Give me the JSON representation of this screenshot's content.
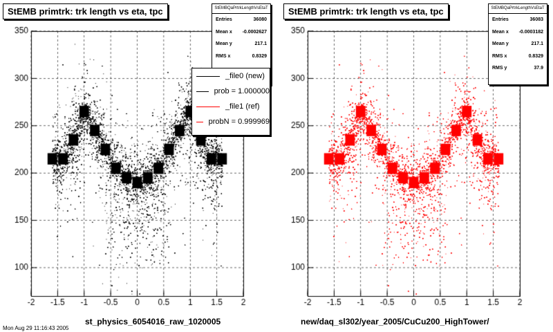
{
  "footer": "Mon Aug 29 11:16:43 2005",
  "panels": [
    {
      "title": "StEMB primtrk: trk length vs eta, tpc",
      "xtitle": "st_physics_6054016_raw_1020005",
      "marker_color": "#000000",
      "stats": {
        "name": "StEMBQaPrtrkLengthVsEtaT",
        "rows": [
          {
            "label": "Entries",
            "value": "36080"
          },
          {
            "label": "Mean x",
            "value": "-0.0002627"
          },
          {
            "label": "Mean y",
            "value": "217.1"
          },
          {
            "label": "RMS x",
            "value": "0.8329"
          }
        ]
      },
      "legend": [
        {
          "label": "_file0 (new)",
          "color": "#000000"
        },
        {
          "label": "prob = 1.000000",
          "color": "#000000"
        },
        {
          "label": "_file1 (ref)",
          "color": "#ff0000"
        },
        {
          "label": "probN = 0.999969",
          "color": "#ff0000"
        }
      ]
    },
    {
      "title": "StEMB primtrk: trk length vs eta, tpc",
      "xtitle": "new/daq_sl302/year_2005/CuCu200_HighTower/",
      "marker_color": "#ff0000",
      "stats": {
        "name": "StEMBQaPrtrkLengthVsEtaT",
        "rows": [
          {
            "label": "Entries",
            "value": "36083"
          },
          {
            "label": "Mean x",
            "value": "-0.0003182"
          },
          {
            "label": "Mean y",
            "value": "217.1"
          },
          {
            "label": "RMS x",
            "value": "0.8329"
          },
          {
            "label": "RMS y",
            "value": "37.9"
          }
        ]
      }
    }
  ],
  "chart_data": [
    {
      "type": "scatter",
      "title": "StEMB primtrk: trk length vs eta, tpc",
      "xlabel": "st_physics_6054016_raw_1020005",
      "ylabel": "",
      "xlim": [
        -2,
        2
      ],
      "ylim": [
        70,
        350
      ],
      "xticks": [
        "-2",
        "-1.5",
        "-1",
        "-0.5",
        "0",
        "0.5",
        "1",
        "1.5",
        "2"
      ],
      "yticks": [
        "100",
        "150",
        "200",
        "250",
        "300",
        "350"
      ],
      "grid": true,
      "density_ridge": {
        "x": [
          -1.6,
          -1.4,
          -1.2,
          -1.0,
          -0.8,
          -0.6,
          -0.4,
          -0.2,
          0.0,
          0.2,
          0.4,
          0.6,
          0.8,
          1.0,
          1.2,
          1.4,
          1.6
        ],
        "y": [
          215,
          215,
          235,
          265,
          245,
          225,
          205,
          195,
          190,
          195,
          205,
          225,
          245,
          265,
          235,
          215,
          215
        ]
      },
      "series": [
        {
          "name": "_file0 (new)",
          "color": "#000000"
        }
      ]
    },
    {
      "type": "scatter",
      "title": "StEMB primtrk: trk length vs eta, tpc",
      "xlabel": "new/daq_sl302/year_2005/CuCu200_HighTower/",
      "ylabel": "",
      "xlim": [
        -2,
        2
      ],
      "ylim": [
        70,
        350
      ],
      "xticks": [
        "-2",
        "-1.5",
        "-1",
        "-0.5",
        "0",
        "0.5",
        "1",
        "1.5",
        "2"
      ],
      "yticks": [
        "100",
        "150",
        "200",
        "250",
        "300",
        "350"
      ],
      "grid": true,
      "density_ridge": {
        "x": [
          -1.6,
          -1.4,
          -1.2,
          -1.0,
          -0.8,
          -0.6,
          -0.4,
          -0.2,
          0.0,
          0.2,
          0.4,
          0.6,
          0.8,
          1.0,
          1.2,
          1.4,
          1.6
        ],
        "y": [
          215,
          215,
          235,
          265,
          245,
          225,
          205,
          195,
          190,
          195,
          205,
          225,
          245,
          265,
          235,
          215,
          215
        ]
      },
      "series": [
        {
          "name": "_file1 (ref)",
          "color": "#ff0000"
        }
      ]
    }
  ]
}
